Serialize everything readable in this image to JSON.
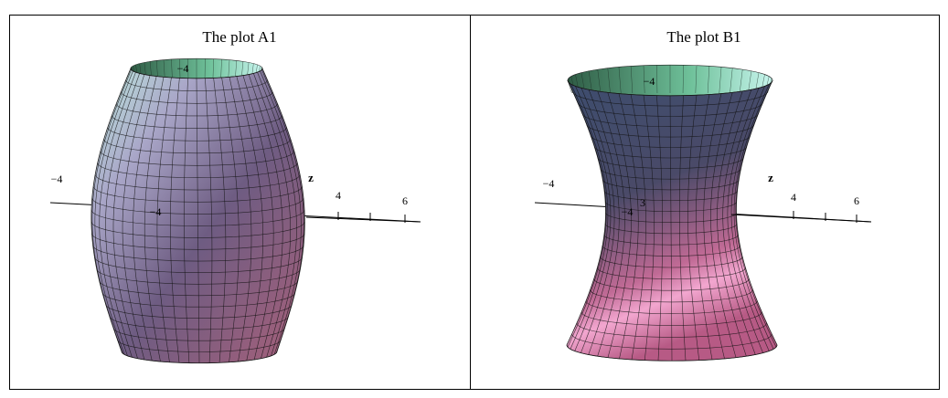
{
  "panels": [
    {
      "title": "The plot A1",
      "labels": [
        "−4",
        "z",
        "4",
        "6",
        "−4",
        "−4"
      ]
    },
    {
      "title": "The plot B1",
      "labels": [
        "−4",
        "z",
        "4",
        "6",
        "−4",
        "−4",
        "3"
      ]
    }
  ]
}
